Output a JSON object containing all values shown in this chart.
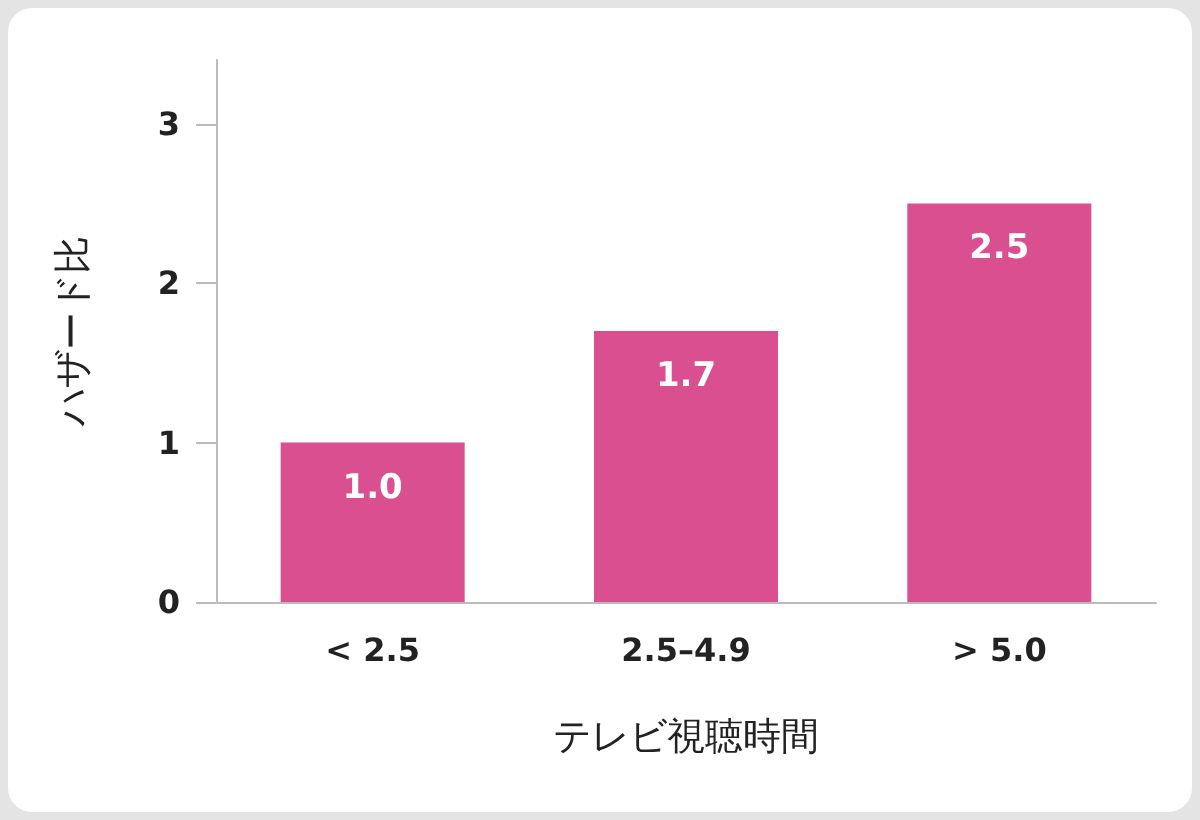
{
  "chart_data": {
    "type": "bar",
    "xlabel": "テレビ視聴時間",
    "ylabel": "ハザード比",
    "categories": [
      "< 2.5",
      "2.5–4.9",
      "> 5.0"
    ],
    "values": [
      1.0,
      1.7,
      2.5
    ],
    "color": "#d94f8f",
    "ylim": [
      0,
      3.4
    ],
    "yticks": [
      0,
      1,
      2,
      3
    ],
    "grid": false,
    "value_labels": [
      "1.0",
      "1.7",
      "2.5"
    ]
  }
}
